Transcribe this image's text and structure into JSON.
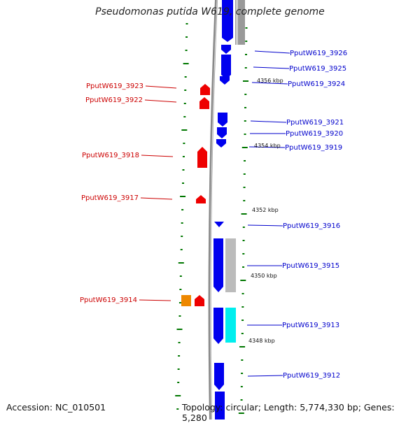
{
  "title": "Pseudomonas putida W619, complete genome",
  "accession": "Accession: NC_010501",
  "topology": "Topology: circular; Length: 5,774,330 bp; Genes: 5,280",
  "colors": {
    "forward_gene": "#0000ee",
    "reverse_gene": "#ee0000",
    "forward_label": "#0000cc",
    "reverse_label": "#cc0000",
    "backbone": "#888888",
    "tick": "#007700",
    "cds_gray": "#bbbbbb",
    "cds_cyan": "#00eeee",
    "cds_orange": "#ee8800"
  },
  "forward_labels": [
    "PputW619_3926",
    "PputW619_3925",
    "PputW619_3924",
    "PputW619_3921",
    "PputW619_3920",
    "PputW619_3919",
    "PputW619_3916",
    "PputW619_3915",
    "PputW619_3913",
    "PputW619_3912"
  ],
  "reverse_labels": [
    "PputW619_3923",
    "PputW619_3922",
    "PputW619_3918",
    "PputW619_3917",
    "PputW619_3914"
  ],
  "kbp_labels": [
    "4356 kbp",
    "4354 kbp",
    "4352 kbp",
    "4350 kbp",
    "4348 kbp"
  ]
}
